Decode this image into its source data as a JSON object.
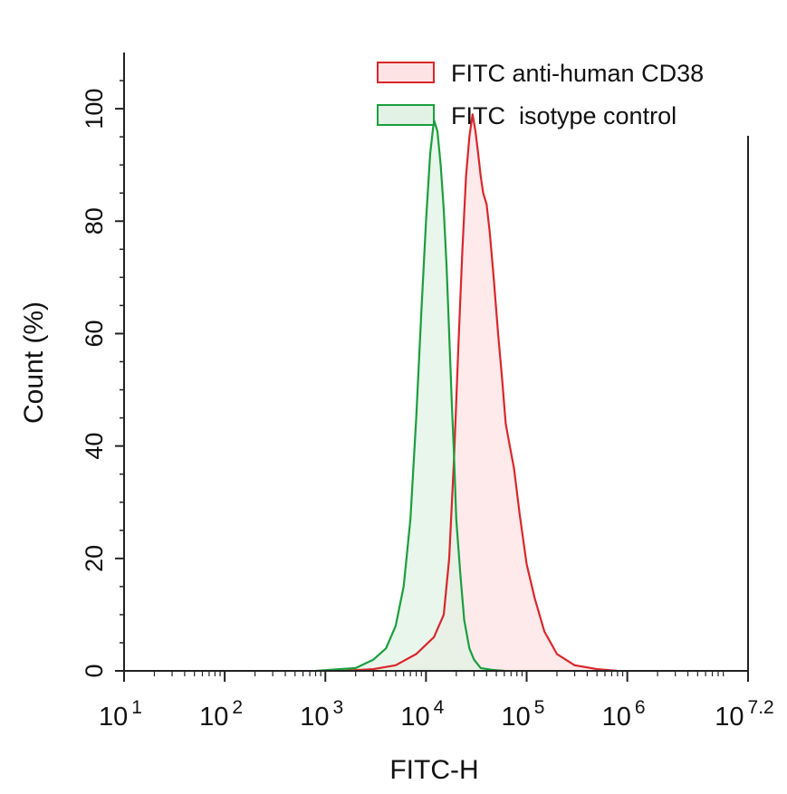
{
  "chart_data": {
    "type": "area",
    "xlabel": "FITC-H",
    "ylabel": "Count  (%)",
    "x_scale": "log10",
    "xlim": [
      10,
      15848931.92
    ],
    "ylim": [
      0,
      110
    ],
    "x_ticks": [
      {
        "value": 10,
        "base": "10",
        "exp": "1"
      },
      {
        "value": 100,
        "base": "10",
        "exp": "2"
      },
      {
        "value": 1000,
        "base": "10",
        "exp": "3"
      },
      {
        "value": 10000,
        "base": "10",
        "exp": "4"
      },
      {
        "value": 100000,
        "base": "10",
        "exp": "5"
      },
      {
        "value": 1000000,
        "base": "10",
        "exp": "6"
      },
      {
        "value": 15848931.92,
        "base": "10",
        "exp": "7.2"
      }
    ],
    "y_ticks": [
      {
        "value": 0,
        "label": "0"
      },
      {
        "value": 20,
        "label": "20"
      },
      {
        "value": 40,
        "label": "40"
      },
      {
        "value": 60,
        "label": "60"
      },
      {
        "value": 80,
        "label": "80"
      },
      {
        "value": 100,
        "label": "100"
      }
    ],
    "legend_position": "top-right",
    "grid": false,
    "series": [
      {
        "name": "FITC anti-human CD38",
        "color": "#d9262b",
        "fill": "#fde3e4",
        "x": [
          1500,
          3000,
          5000,
          8000,
          12000,
          15000,
          17000,
          19000,
          21000,
          23000,
          25000,
          27000,
          29000,
          31000,
          33000,
          35000,
          37000,
          40000,
          43000,
          47000,
          52000,
          57000,
          62000,
          68000,
          75000,
          85000,
          100000,
          120000,
          150000,
          200000,
          300000,
          500000,
          800000
        ],
        "y": [
          0,
          0.3,
          1,
          3,
          6,
          10,
          20,
          38,
          58,
          75,
          88,
          95,
          99,
          96,
          92,
          88,
          85,
          83,
          78,
          70,
          60,
          52,
          44,
          40,
          36,
          28,
          19,
          13,
          7,
          3,
          1,
          0.3,
          0
        ]
      },
      {
        "name": "FITC  isotype control",
        "color": "#1b9e3e",
        "fill": "#e2f3e6",
        "x": [
          800,
          2000,
          3000,
          4000,
          5000,
          6000,
          7000,
          8000,
          9000,
          10000,
          11000,
          12000,
          13000,
          14000,
          15000,
          16000,
          17000,
          18000,
          19000,
          20000,
          22000,
          24000,
          27000,
          30000,
          35000,
          45000,
          60000
        ],
        "y": [
          0,
          0.5,
          2,
          4,
          8,
          15,
          27,
          45,
          64,
          80,
          92,
          98,
          96,
          90,
          82,
          72,
          60,
          48,
          38,
          27,
          17,
          9,
          4,
          2,
          0.5,
          0.2,
          0
        ]
      }
    ]
  }
}
